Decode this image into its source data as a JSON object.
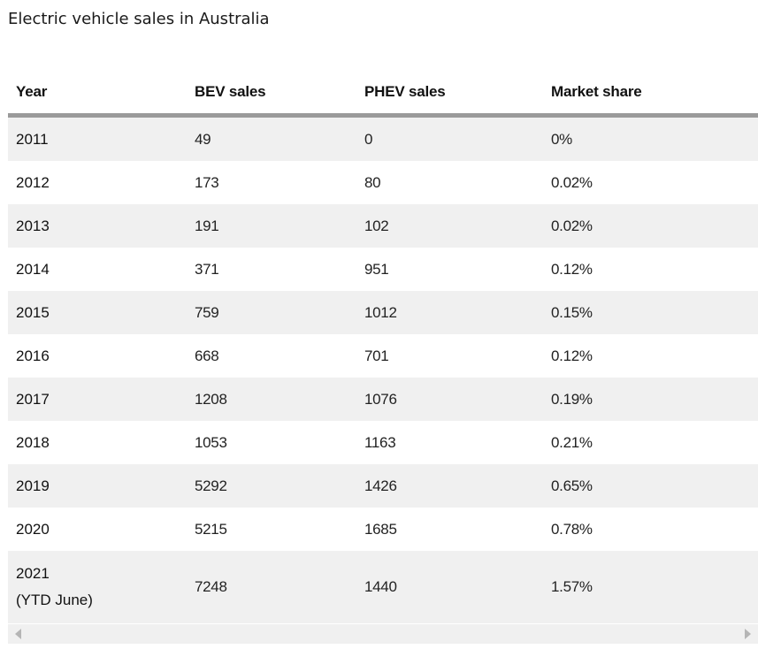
{
  "title": "Electric vehicle sales in Australia",
  "chart_data": {
    "type": "table",
    "columns": [
      "Year",
      "BEV sales",
      "PHEV sales",
      "Market share"
    ],
    "rows": [
      [
        "2011",
        "49",
        "0",
        "0%"
      ],
      [
        "2012",
        "173",
        "80",
        "0.02%"
      ],
      [
        "2013",
        "191",
        "102",
        "0.02%"
      ],
      [
        "2014",
        "371",
        "951",
        "0.12%"
      ],
      [
        "2015",
        "759",
        "1012",
        "0.15%"
      ],
      [
        "2016",
        "668",
        "701",
        "0.12%"
      ],
      [
        "2017",
        "1208",
        "1076",
        "0.19%"
      ],
      [
        "2018",
        "1053",
        "1163",
        "0.21%"
      ],
      [
        "2019",
        "5292",
        "1426",
        "0.65%"
      ],
      [
        "2020",
        "5215",
        "1685",
        "0.78%"
      ],
      [
        "2021",
        "7248",
        "1440",
        "1.57%"
      ]
    ],
    "row_notes": {
      "10": "(YTD June)"
    }
  },
  "scrollbar": {
    "left_icon": "scroll-left-arrow-icon",
    "right_icon": "scroll-right-arrow-icon"
  },
  "colors": {
    "header_rule": "#9a9a9a",
    "stripe": "#f0f0f0"
  }
}
